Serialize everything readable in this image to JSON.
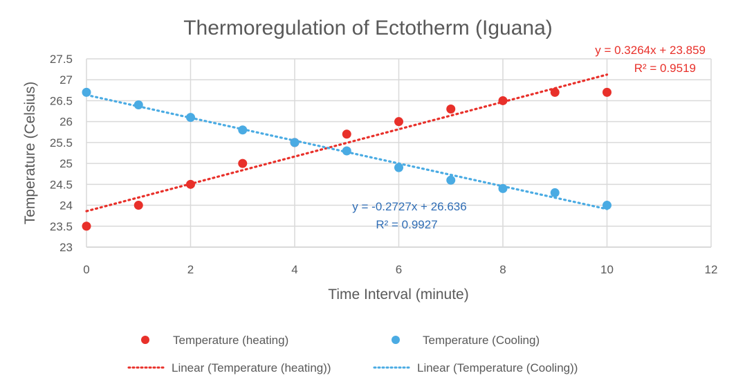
{
  "chart_data": {
    "type": "scatter",
    "title": "Thermoregulation of Ectotherm (Iguana)",
    "xlabel": "Time Interval (minute)",
    "ylabel": "Temperature (Celsius)",
    "xlim": [
      0,
      12
    ],
    "ylim": [
      23,
      27.5
    ],
    "xticks": [
      "0",
      "2",
      "4",
      "6",
      "8",
      "10",
      "12"
    ],
    "yticks": [
      "23",
      "23.5",
      "24",
      "24.5",
      "25",
      "25.5",
      "26",
      "26.5",
      "27",
      "27.5"
    ],
    "grid": true,
    "legend_position": "bottom",
    "series": [
      {
        "name": "Temperature (heating)",
        "color": "#e8302a",
        "x": [
          0,
          1,
          2,
          3,
          4,
          5,
          6,
          7,
          8,
          9,
          10
        ],
        "y": [
          23.5,
          24,
          24.5,
          25,
          25.5,
          25.7,
          26,
          26.3,
          26.5,
          26.7,
          26.7
        ]
      },
      {
        "name": "Temperature (Cooling)",
        "color": "#4aabe3",
        "x": [
          0,
          1,
          2,
          3,
          4,
          5,
          6,
          7,
          8,
          9,
          10
        ],
        "y": [
          26.7,
          26.4,
          26.1,
          25.8,
          25.5,
          25.3,
          24.9,
          24.6,
          24.4,
          24.3,
          24.0
        ]
      }
    ],
    "trendlines": [
      {
        "name": "Linear (Temperature (heating))",
        "color": "#e8302a",
        "slope": 0.3264,
        "intercept": 23.859,
        "x_range": [
          0,
          10
        ],
        "equation": "y = 0.3264x + 23.859",
        "r2": "R² = 0.9519"
      },
      {
        "name": "Linear (Temperature (Cooling))",
        "color": "#4aabe3",
        "label_color": "#2f6db5",
        "slope": -0.2727,
        "intercept": 26.636,
        "x_range": [
          0,
          10
        ],
        "equation": "y = -0.2727x + 26.636",
        "r2": "R² = 0.9927"
      }
    ]
  }
}
